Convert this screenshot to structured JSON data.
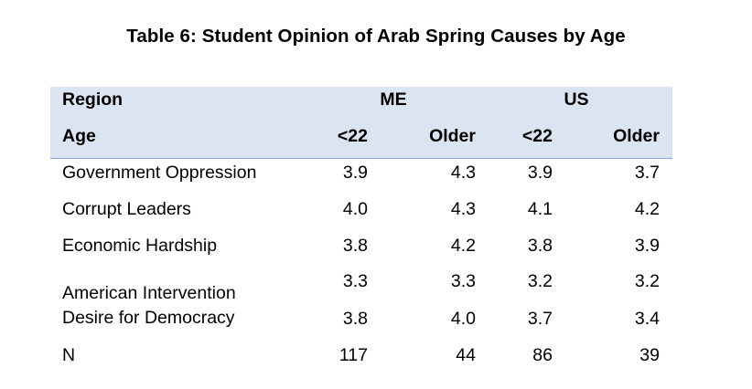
{
  "title": "Table 6:  Student Opinion of Arab Spring Causes by Age",
  "header": {
    "region_label": "Region",
    "age_label": "Age",
    "group_me": "ME",
    "group_us": "US",
    "me_under22": "<22",
    "me_older": "Older",
    "us_under22": "<22",
    "us_older": "Older"
  },
  "rows": [
    {
      "label": "Government Oppression",
      "me_under22": "3.9",
      "me_older": "4.3",
      "us_under22": "3.9",
      "us_older": "3.7"
    },
    {
      "label": "Corrupt Leaders",
      "me_under22": "4.0",
      "me_older": "4.3",
      "us_under22": "4.1",
      "us_older": "4.2"
    },
    {
      "label": "Economic Hardship",
      "me_under22": "3.8",
      "me_older": "4.2",
      "us_under22": "3.8",
      "us_older": "3.9"
    },
    {
      "label": "American Intervention",
      "me_under22": "3.3",
      "me_older": "3.3",
      "us_under22": "3.2",
      "us_older": "3.2"
    },
    {
      "label": "Desire for Democracy",
      "me_under22": "3.8",
      "me_older": "4.0",
      "us_under22": "3.7",
      "us_older": "3.4"
    },
    {
      "label": "N",
      "me_under22": "117",
      "me_older": "44",
      "us_under22": "86",
      "us_older": "39"
    }
  ]
}
